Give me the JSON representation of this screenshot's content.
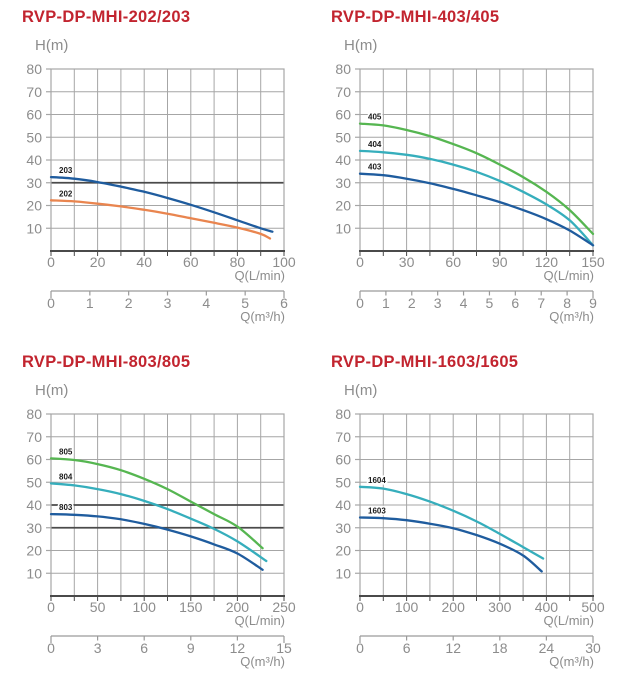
{
  "styles": {
    "title_color": "#c2242f",
    "axis_text_color": "#8c8c8c",
    "grid_color": "#a6a6a6",
    "dark_line_color": "#4a4a4a",
    "series_label_color": "#1b1b1b",
    "curve_blue": "#1f5c9e",
    "curve_orange": "#e9854f",
    "curve_green": "#56b651",
    "curve_cyan": "#36aebc"
  },
  "chart_data": [
    {
      "type": "line",
      "title": "RVP-DP-MHI-202/203",
      "ylabel": "H(m)",
      "xlabel": "Q(L/min)",
      "x2label": "Q(m³/h)",
      "ylim": [
        0,
        80
      ],
      "y_ticks": [
        10,
        20,
        30,
        40,
        50,
        60,
        70,
        80
      ],
      "xlim": [
        0,
        100
      ],
      "x_minor_step": 10,
      "x_ticks": [
        0,
        20,
        40,
        60,
        80,
        100
      ],
      "x2lim": [
        0,
        6
      ],
      "x2_ticks": [
        0,
        1,
        2,
        3,
        4,
        5,
        6
      ],
      "dark_gridlines_y": [
        30
      ],
      "grid": true,
      "series": [
        {
          "name": "203",
          "color": "#1f5c9e",
          "points": [
            [
              0,
              32.5
            ],
            [
              10,
              31.8
            ],
            [
              20,
              30.3
            ],
            [
              30,
              28.3
            ],
            [
              40,
              26
            ],
            [
              50,
              23.3
            ],
            [
              60,
              20.3
            ],
            [
              70,
              17
            ],
            [
              80,
              13.5
            ],
            [
              90,
              10
            ],
            [
              95,
              8.5
            ]
          ]
        },
        {
          "name": "202",
          "color": "#e9854f",
          "points": [
            [
              0,
              22.3
            ],
            [
              10,
              21.8
            ],
            [
              20,
              20.8
            ],
            [
              30,
              19.6
            ],
            [
              40,
              18.1
            ],
            [
              50,
              16.4
            ],
            [
              60,
              14.4
            ],
            [
              70,
              12.4
            ],
            [
              80,
              10.3
            ],
            [
              90,
              7.5
            ],
            [
              94,
              5.5
            ]
          ]
        }
      ]
    },
    {
      "type": "line",
      "title": "RVP-DP-MHI-403/405",
      "ylabel": "H(m)",
      "xlabel": "Q(L/min)",
      "x2label": "Q(m³/h)",
      "ylim": [
        0,
        80
      ],
      "y_ticks": [
        10,
        20,
        30,
        40,
        50,
        60,
        70,
        80
      ],
      "xlim": [
        0,
        150
      ],
      "x_minor_step": 15,
      "x_ticks": [
        0,
        30,
        60,
        90,
        120,
        150
      ],
      "x2lim": [
        0,
        9
      ],
      "x2_ticks": [
        0,
        1,
        2,
        3,
        4,
        5,
        6,
        7,
        8,
        9
      ],
      "dark_gridlines_y": [],
      "grid": true,
      "series": [
        {
          "name": "405",
          "color": "#56b651",
          "points": [
            [
              0,
              56
            ],
            [
              15,
              55.2
            ],
            [
              30,
              53.2
            ],
            [
              45,
              50.5
            ],
            [
              60,
              47
            ],
            [
              75,
              43
            ],
            [
              90,
              38
            ],
            [
              105,
              32.5
            ],
            [
              120,
              26
            ],
            [
              135,
              18
            ],
            [
              150,
              7.5
            ]
          ]
        },
        {
          "name": "404",
          "color": "#36aebc",
          "points": [
            [
              0,
              44
            ],
            [
              15,
              43.4
            ],
            [
              30,
              42.3
            ],
            [
              45,
              40.5
            ],
            [
              60,
              38
            ],
            [
              75,
              34.8
            ],
            [
              90,
              30.8
            ],
            [
              105,
              26
            ],
            [
              120,
              20.5
            ],
            [
              135,
              13.5
            ],
            [
              150,
              2.5
            ]
          ]
        },
        {
          "name": "403",
          "color": "#1f5c9e",
          "points": [
            [
              0,
              34
            ],
            [
              15,
              33.3
            ],
            [
              30,
              31.8
            ],
            [
              45,
              29.8
            ],
            [
              60,
              27.3
            ],
            [
              75,
              24.5
            ],
            [
              90,
              21.5
            ],
            [
              105,
              18
            ],
            [
              120,
              14
            ],
            [
              135,
              9
            ],
            [
              150,
              2.5
            ]
          ]
        }
      ]
    },
    {
      "type": "line",
      "title": "RVP-DP-MHI-803/805",
      "ylabel": "H(m)",
      "xlabel": "Q(L/min)",
      "x2label": "Q(m³/h)",
      "ylim": [
        0,
        80
      ],
      "y_ticks": [
        10,
        20,
        30,
        40,
        50,
        60,
        70,
        80
      ],
      "xlim": [
        0,
        250
      ],
      "x_minor_step": 25,
      "x_ticks": [
        0,
        50,
        100,
        150,
        200,
        250
      ],
      "x2lim": [
        0,
        15
      ],
      "x2_ticks": [
        0,
        3,
        6,
        9,
        12,
        15
      ],
      "dark_gridlines_y": [
        30,
        40
      ],
      "grid": true,
      "series": [
        {
          "name": "805",
          "color": "#56b651",
          "points": [
            [
              0,
              60.5
            ],
            [
              25,
              59.8
            ],
            [
              50,
              58
            ],
            [
              75,
              55.3
            ],
            [
              100,
              51.5
            ],
            [
              125,
              47
            ],
            [
              150,
              41.5
            ],
            [
              175,
              36
            ],
            [
              200,
              30.5
            ],
            [
              227,
              21
            ]
          ]
        },
        {
          "name": "804",
          "color": "#36aebc",
          "points": [
            [
              0,
              49.5
            ],
            [
              25,
              48.6
            ],
            [
              50,
              47
            ],
            [
              75,
              44.8
            ],
            [
              100,
              41.8
            ],
            [
              125,
              38.2
            ],
            [
              150,
              34
            ],
            [
              175,
              29.5
            ],
            [
              200,
              24
            ],
            [
              231,
              15.4
            ]
          ]
        },
        {
          "name": "803",
          "color": "#1f5c9e",
          "points": [
            [
              0,
              36
            ],
            [
              25,
              35.7
            ],
            [
              50,
              35
            ],
            [
              75,
              33.7
            ],
            [
              100,
              31.7
            ],
            [
              125,
              29.2
            ],
            [
              150,
              26.2
            ],
            [
              175,
              22.7
            ],
            [
              200,
              18.7
            ],
            [
              227,
              11.5
            ]
          ]
        }
      ]
    },
    {
      "type": "line",
      "title": "RVP-DP-MHI-1603/1605",
      "ylabel": "H(m)",
      "xlabel": "Q(L/min)",
      "x2label": "Q(m³/h)",
      "ylim": [
        0,
        80
      ],
      "y_ticks": [
        10,
        20,
        30,
        40,
        50,
        60,
        70,
        80
      ],
      "xlim": [
        0,
        500
      ],
      "x_minor_step": 50,
      "x_ticks": [
        0,
        100,
        200,
        300,
        400,
        500
      ],
      "x2lim": [
        0,
        30
      ],
      "x2_ticks": [
        0,
        6,
        12,
        18,
        24,
        30
      ],
      "dark_gridlines_y": [],
      "grid": true,
      "series": [
        {
          "name": "1604",
          "color": "#36aebc",
          "points": [
            [
              0,
              48
            ],
            [
              50,
              47.2
            ],
            [
              100,
              44.8
            ],
            [
              150,
              41.5
            ],
            [
              200,
              37.5
            ],
            [
              250,
              32.8
            ],
            [
              300,
              27.3
            ],
            [
              350,
              21.5
            ],
            [
              393,
              16.5
            ]
          ]
        },
        {
          "name": "1603",
          "color": "#1f5c9e",
          "points": [
            [
              0,
              34.5
            ],
            [
              50,
              34.2
            ],
            [
              100,
              33.3
            ],
            [
              150,
              31.8
            ],
            [
              200,
              29.8
            ],
            [
              250,
              26.8
            ],
            [
              300,
              23
            ],
            [
              350,
              17.8
            ],
            [
              390,
              10.8
            ]
          ]
        }
      ]
    }
  ]
}
